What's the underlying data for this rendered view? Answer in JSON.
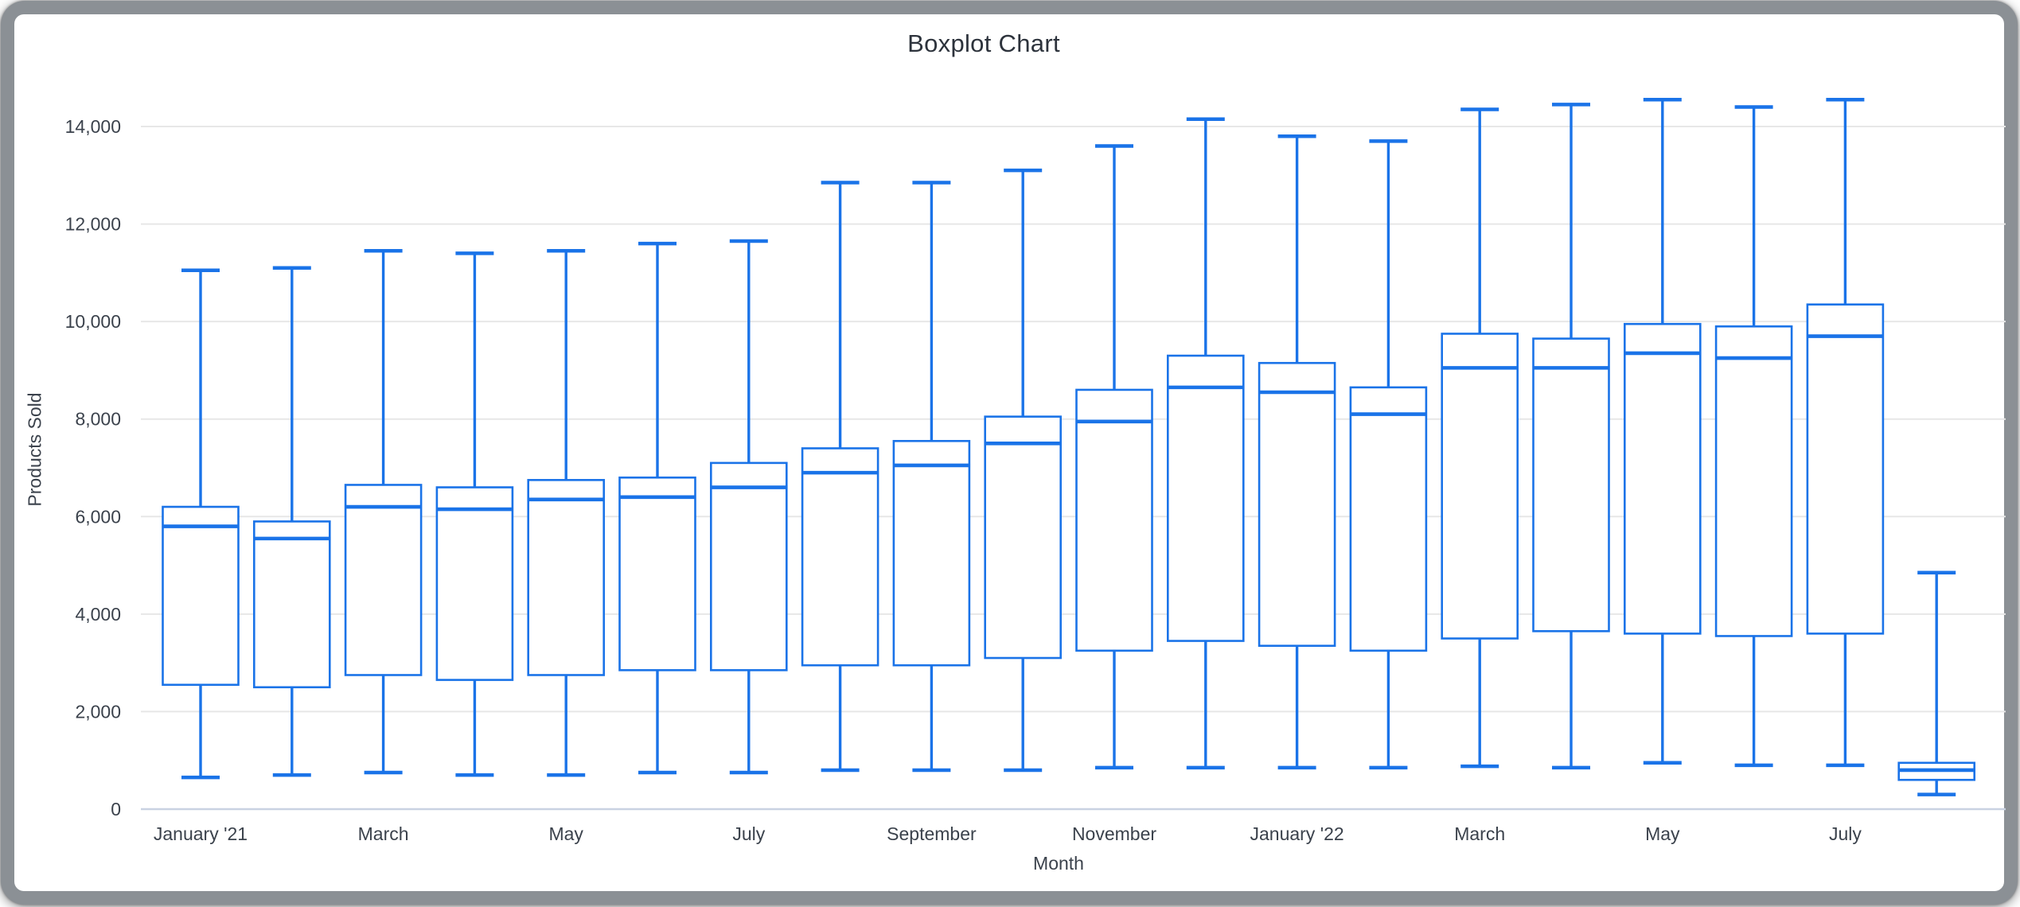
{
  "window": {
    "frame_color": "#8b9095",
    "background_color": "#ffffff"
  },
  "chart_data": {
    "type": "boxplot",
    "title": "Boxplot Chart",
    "xlabel": "Month",
    "ylabel": "Products Sold",
    "ylim": [
      0,
      14000
    ],
    "grid": true,
    "legend": "none",
    "y_ticks": [
      0,
      2000,
      4000,
      6000,
      8000,
      10000,
      12000,
      14000
    ],
    "y_tick_labels": [
      "0",
      "2,000",
      "4,000",
      "6,000",
      "8,000",
      "10,000",
      "12,000",
      "14,000"
    ],
    "x_tick_labels": [
      "January '21",
      "March",
      "May",
      "July",
      "September",
      "November",
      "January '22",
      "March",
      "May",
      "July"
    ],
    "x_tick_every": 2,
    "colors": {
      "box_stroke": "#1a73e8",
      "box_fill": "#ffffff",
      "gridline": "#e7e7e7",
      "baseline": "#c9d2e2",
      "tick_text": "#3b424c",
      "title_text": "#2d333c"
    },
    "boxes": [
      {
        "label": "January '21",
        "low": 650,
        "q1": 2550,
        "median": 5800,
        "q3": 6200,
        "high": 11050
      },
      {
        "label": "",
        "low": 700,
        "q1": 2500,
        "median": 5550,
        "q3": 5900,
        "high": 11100
      },
      {
        "label": "March",
        "low": 750,
        "q1": 2750,
        "median": 6200,
        "q3": 6650,
        "high": 11450
      },
      {
        "label": "",
        "low": 700,
        "q1": 2650,
        "median": 6150,
        "q3": 6600,
        "high": 11400
      },
      {
        "label": "May",
        "low": 700,
        "q1": 2750,
        "median": 6350,
        "q3": 6750,
        "high": 11450
      },
      {
        "label": "",
        "low": 750,
        "q1": 2850,
        "median": 6400,
        "q3": 6800,
        "high": 11600
      },
      {
        "label": "July",
        "low": 750,
        "q1": 2850,
        "median": 6600,
        "q3": 7100,
        "high": 11650
      },
      {
        "label": "",
        "low": 800,
        "q1": 2950,
        "median": 6900,
        "q3": 7400,
        "high": 12850
      },
      {
        "label": "September",
        "low": 800,
        "q1": 2950,
        "median": 7050,
        "q3": 7550,
        "high": 12850
      },
      {
        "label": "",
        "low": 800,
        "q1": 3100,
        "median": 7500,
        "q3": 8050,
        "high": 13100
      },
      {
        "label": "November",
        "low": 850,
        "q1": 3250,
        "median": 7950,
        "q3": 8600,
        "high": 13600
      },
      {
        "label": "",
        "low": 850,
        "q1": 3450,
        "median": 8650,
        "q3": 9300,
        "high": 14150
      },
      {
        "label": "January '22",
        "low": 850,
        "q1": 3350,
        "median": 8550,
        "q3": 9150,
        "high": 13800
      },
      {
        "label": "",
        "low": 850,
        "q1": 3250,
        "median": 8100,
        "q3": 8650,
        "high": 13700
      },
      {
        "label": "March",
        "low": 880,
        "q1": 3500,
        "median": 9050,
        "q3": 9750,
        "high": 14350
      },
      {
        "label": "",
        "low": 850,
        "q1": 3650,
        "median": 9050,
        "q3": 9650,
        "high": 14450
      },
      {
        "label": "May",
        "low": 950,
        "q1": 3600,
        "median": 9350,
        "q3": 9950,
        "high": 14550
      },
      {
        "label": "",
        "low": 900,
        "q1": 3550,
        "median": 9250,
        "q3": 9900,
        "high": 14400
      },
      {
        "label": "July",
        "low": 900,
        "q1": 3600,
        "median": 9700,
        "q3": 10350,
        "high": 14550
      },
      {
        "label": "",
        "low": 300,
        "q1": 600,
        "median": 800,
        "q3": 950,
        "high": 4850
      }
    ]
  }
}
